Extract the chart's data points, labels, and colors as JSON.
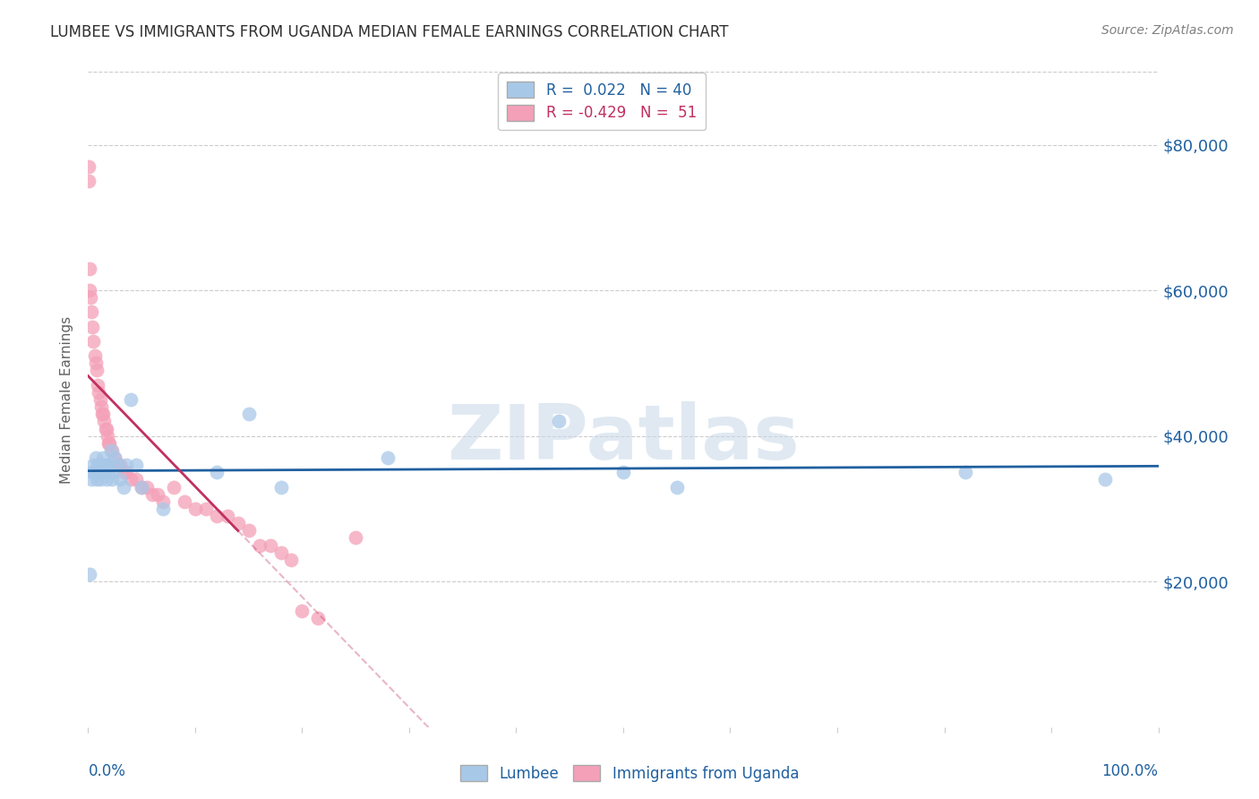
{
  "title": "LUMBEE VS IMMIGRANTS FROM UGANDA MEDIAN FEMALE EARNINGS CORRELATION CHART",
  "source": "Source: ZipAtlas.com",
  "ylabel": "Median Female Earnings",
  "ytick_labels": [
    "$20,000",
    "$40,000",
    "$60,000",
    "$80,000"
  ],
  "ytick_values": [
    20000,
    40000,
    60000,
    80000
  ],
  "ylim": [
    0,
    90000
  ],
  "xlim": [
    0.0,
    1.0
  ],
  "watermark": "ZIPatlas",
  "legend_blue_r": "0.022",
  "legend_blue_n": "40",
  "legend_pink_r": "-0.429",
  "legend_pink_n": "51",
  "lumbee_label": "Lumbee",
  "uganda_label": "Immigrants from Uganda",
  "blue_color": "#a8c8e8",
  "pink_color": "#f4a0b8",
  "blue_line_color": "#2060a0",
  "pink_line_color": "#c03060",
  "title_color": "#303030",
  "axis_label_color": "#606060",
  "tick_label_color": "#2060a0",
  "grid_color": "#cccccc",
  "source_color": "#808080",
  "watermark_color": "#c8d8e8",
  "lumbee_x": [
    0.001,
    0.003,
    0.004,
    0.005,
    0.006,
    0.007,
    0.008,
    0.009,
    0.01,
    0.011,
    0.012,
    0.013,
    0.014,
    0.015,
    0.016,
    0.017,
    0.018,
    0.019,
    0.02,
    0.021,
    0.022,
    0.023,
    0.025,
    0.027,
    0.03,
    0.033,
    0.036,
    0.04,
    0.045,
    0.05,
    0.07,
    0.12,
    0.15,
    0.18,
    0.28,
    0.44,
    0.5,
    0.55,
    0.82,
    0.95
  ],
  "lumbee_y": [
    21000,
    34000,
    35000,
    36000,
    35000,
    37000,
    34000,
    36000,
    35000,
    34000,
    36000,
    35000,
    37000,
    36000,
    35000,
    34000,
    36000,
    35000,
    36000,
    38000,
    34000,
    35000,
    37000,
    36000,
    34000,
    33000,
    36000,
    45000,
    36000,
    33000,
    30000,
    35000,
    43000,
    33000,
    37000,
    42000,
    35000,
    33000,
    35000,
    34000
  ],
  "uganda_x": [
    0.0003,
    0.0005,
    0.001,
    0.001,
    0.002,
    0.003,
    0.004,
    0.005,
    0.006,
    0.007,
    0.008,
    0.009,
    0.01,
    0.011,
    0.012,
    0.013,
    0.014,
    0.015,
    0.016,
    0.017,
    0.018,
    0.019,
    0.02,
    0.022,
    0.025,
    0.028,
    0.03,
    0.033,
    0.036,
    0.04,
    0.045,
    0.05,
    0.055,
    0.06,
    0.065,
    0.07,
    0.08,
    0.09,
    0.1,
    0.11,
    0.12,
    0.13,
    0.14,
    0.15,
    0.16,
    0.17,
    0.18,
    0.19,
    0.2,
    0.215,
    0.25
  ],
  "uganda_y": [
    77000,
    75000,
    63000,
    60000,
    59000,
    57000,
    55000,
    53000,
    51000,
    50000,
    49000,
    47000,
    46000,
    45000,
    44000,
    43000,
    43000,
    42000,
    41000,
    41000,
    40000,
    39000,
    39000,
    38000,
    37000,
    36000,
    36000,
    35000,
    35000,
    34000,
    34000,
    33000,
    33000,
    32000,
    32000,
    31000,
    33000,
    31000,
    30000,
    30000,
    29000,
    29000,
    28000,
    27000,
    25000,
    25000,
    24000,
    23000,
    16000,
    15000,
    26000
  ]
}
